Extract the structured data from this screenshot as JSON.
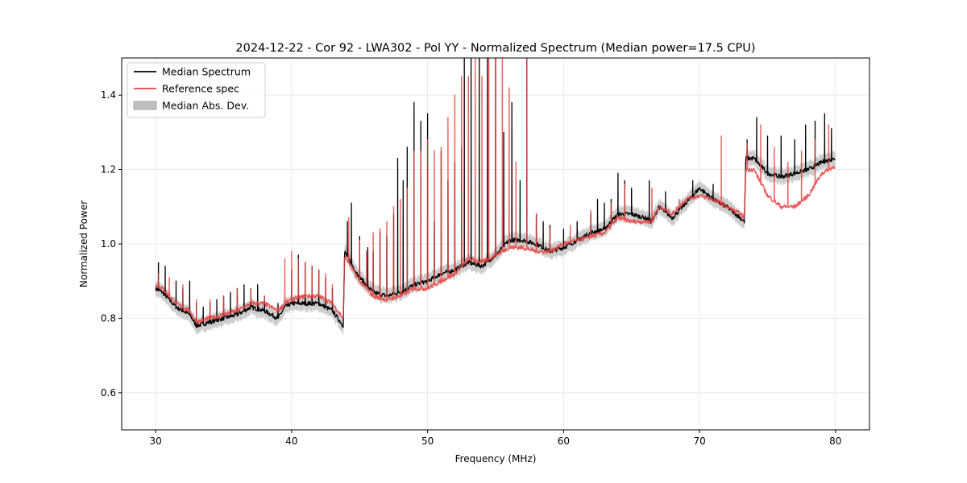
{
  "chart_data": {
    "type": "line",
    "title": "2024-12-22 - Cor 92 - LWA302 - Pol YY - Normalized Spectrum (Median power=17.5 CPU)",
    "xlabel": "Frequency (MHz)",
    "ylabel": "Normalized Power",
    "xlim": [
      27.5,
      82.5
    ],
    "ylim": [
      0.5,
      1.5
    ],
    "xticks": [
      30,
      40,
      50,
      60,
      70,
      80
    ],
    "yticks": [
      0.6,
      0.8,
      1.0,
      1.2,
      1.4
    ],
    "xtick_labels": [
      "30",
      "40",
      "50",
      "60",
      "70",
      "80"
    ],
    "ytick_labels": [
      "0.6",
      "0.8",
      "1.0",
      "1.2",
      "1.4"
    ],
    "grid": true,
    "legend_position": "top-left",
    "legend": [
      {
        "label": "Median Spectrum",
        "kind": "line",
        "color": "#000000"
      },
      {
        "label": "Reference spec",
        "kind": "line",
        "color": "#e8413f"
      },
      {
        "label": "Median Abs. Dev.",
        "kind": "band",
        "color": "#bfbfbf"
      }
    ],
    "series": [
      {
        "name": "Median Spectrum",
        "color": "#000000",
        "baseline": [
          [
            30.0,
            0.88
          ],
          [
            30.5,
            0.87
          ],
          [
            31.0,
            0.85
          ],
          [
            31.5,
            0.83
          ],
          [
            32.0,
            0.82
          ],
          [
            32.5,
            0.81
          ],
          [
            33.0,
            0.78
          ],
          [
            34.0,
            0.79
          ],
          [
            35.0,
            0.8
          ],
          [
            36.0,
            0.81
          ],
          [
            37.0,
            0.83
          ],
          [
            38.0,
            0.82
          ],
          [
            39.0,
            0.8
          ],
          [
            39.5,
            0.83
          ],
          [
            40.0,
            0.84
          ],
          [
            41.0,
            0.84
          ],
          [
            42.0,
            0.84
          ],
          [
            43.0,
            0.82
          ],
          [
            43.8,
            0.78
          ],
          [
            43.9,
            0.98
          ],
          [
            44.5,
            0.94
          ],
          [
            45.0,
            0.91
          ],
          [
            46.0,
            0.87
          ],
          [
            47.0,
            0.86
          ],
          [
            48.0,
            0.87
          ],
          [
            49.0,
            0.89
          ],
          [
            50.0,
            0.9
          ],
          [
            51.0,
            0.92
          ],
          [
            52.0,
            0.93
          ],
          [
            53.0,
            0.95
          ],
          [
            54.0,
            0.94
          ],
          [
            55.0,
            0.97
          ],
          [
            56.0,
            1.01
          ],
          [
            57.0,
            1.01
          ],
          [
            58.0,
            1.0
          ],
          [
            59.0,
            0.98
          ],
          [
            60.0,
            0.99
          ],
          [
            61.0,
            1.01
          ],
          [
            62.0,
            1.03
          ],
          [
            63.0,
            1.04
          ],
          [
            64.0,
            1.08
          ],
          [
            65.0,
            1.08
          ],
          [
            66.0,
            1.07
          ],
          [
            66.5,
            1.06
          ],
          [
            67.0,
            1.1
          ],
          [
            68.0,
            1.07
          ],
          [
            69.0,
            1.11
          ],
          [
            70.0,
            1.15
          ],
          [
            71.0,
            1.12
          ],
          [
            72.0,
            1.1
          ],
          [
            73.0,
            1.07
          ],
          [
            73.3,
            1.06
          ],
          [
            73.4,
            1.23
          ],
          [
            74.0,
            1.23
          ],
          [
            75.0,
            1.19
          ],
          [
            76.0,
            1.18
          ],
          [
            77.0,
            1.19
          ],
          [
            78.0,
            1.2
          ],
          [
            79.0,
            1.22
          ],
          [
            80.0,
            1.23
          ]
        ],
        "spikes": [
          [
            30.2,
            0.95
          ],
          [
            30.7,
            0.94
          ],
          [
            31.5,
            0.9
          ],
          [
            32.0,
            0.88
          ],
          [
            32.5,
            0.9
          ],
          [
            33.0,
            0.84
          ],
          [
            33.5,
            0.83
          ],
          [
            34.0,
            0.84
          ],
          [
            34.5,
            0.85
          ],
          [
            35.0,
            0.86
          ],
          [
            35.5,
            0.87
          ],
          [
            36.0,
            0.88
          ],
          [
            36.5,
            0.89
          ],
          [
            37.0,
            0.88
          ],
          [
            37.5,
            0.89
          ],
          [
            38.0,
            0.86
          ],
          [
            39.0,
            0.84
          ],
          [
            40.0,
            0.93
          ],
          [
            40.5,
            0.97
          ],
          [
            41.0,
            0.95
          ],
          [
            41.5,
            0.94
          ],
          [
            42.0,
            0.93
          ],
          [
            42.5,
            0.91
          ],
          [
            43.0,
            0.88
          ],
          [
            44.1,
            1.06
          ],
          [
            44.4,
            1.11
          ],
          [
            45.0,
            1.02
          ],
          [
            45.6,
            0.99
          ],
          [
            46.0,
            0.98
          ],
          [
            46.5,
            1.03
          ],
          [
            47.0,
            1.02
          ],
          [
            47.5,
            1.08
          ],
          [
            47.8,
            1.23
          ],
          [
            48.2,
            1.17
          ],
          [
            48.5,
            1.26
          ],
          [
            49.0,
            1.38
          ],
          [
            49.5,
            1.33
          ],
          [
            50.0,
            1.35
          ],
          [
            50.5,
            1.06
          ],
          [
            51.0,
            1.25
          ],
          [
            51.5,
            1.17
          ],
          [
            52.0,
            1.22
          ],
          [
            52.5,
            1.26
          ],
          [
            52.7,
            1.5
          ],
          [
            53.2,
            1.5
          ],
          [
            53.8,
            1.5
          ],
          [
            54.4,
            1.5
          ],
          [
            55.0,
            1.5
          ],
          [
            55.6,
            1.3
          ],
          [
            56.2,
            1.38
          ],
          [
            56.8,
            1.17
          ],
          [
            57.3,
            1.5
          ],
          [
            58.0,
            1.08
          ],
          [
            58.5,
            1.06
          ],
          [
            59.0,
            1.05
          ],
          [
            60.0,
            1.04
          ],
          [
            61.0,
            1.06
          ],
          [
            62.0,
            1.08
          ],
          [
            62.5,
            1.12
          ],
          [
            63.0,
            1.11
          ],
          [
            63.5,
            1.12
          ],
          [
            64.0,
            1.19
          ],
          [
            64.5,
            1.17
          ],
          [
            65.0,
            1.15
          ],
          [
            66.3,
            1.17
          ],
          [
            67.5,
            1.14
          ],
          [
            69.5,
            1.17
          ],
          [
            71.0,
            1.16
          ],
          [
            73.5,
            1.28
          ],
          [
            74.2,
            1.34
          ],
          [
            75.0,
            1.29
          ],
          [
            76.0,
            1.29
          ],
          [
            77.0,
            1.28
          ],
          [
            77.8,
            1.32
          ],
          [
            78.5,
            1.33
          ],
          [
            79.2,
            1.35
          ],
          [
            79.7,
            1.31
          ]
        ]
      },
      {
        "name": "Reference spec",
        "color": "#e8413f",
        "baseline": [
          [
            30.0,
            0.89
          ],
          [
            30.5,
            0.88
          ],
          [
            31.0,
            0.86
          ],
          [
            31.5,
            0.84
          ],
          [
            32.0,
            0.83
          ],
          [
            32.5,
            0.82
          ],
          [
            33.0,
            0.79
          ],
          [
            34.0,
            0.8
          ],
          [
            35.0,
            0.81
          ],
          [
            36.0,
            0.82
          ],
          [
            37.0,
            0.84
          ],
          [
            38.0,
            0.84
          ],
          [
            39.0,
            0.82
          ],
          [
            39.5,
            0.84
          ],
          [
            40.0,
            0.85
          ],
          [
            41.0,
            0.86
          ],
          [
            42.0,
            0.86
          ],
          [
            43.0,
            0.84
          ],
          [
            43.8,
            0.8
          ],
          [
            43.9,
            0.97
          ],
          [
            44.5,
            0.93
          ],
          [
            45.0,
            0.9
          ],
          [
            46.0,
            0.86
          ],
          [
            47.0,
            0.85
          ],
          [
            48.0,
            0.86
          ],
          [
            49.0,
            0.88
          ],
          [
            50.0,
            0.88
          ],
          [
            51.0,
            0.9
          ],
          [
            52.0,
            0.92
          ],
          [
            53.0,
            0.96
          ],
          [
            54.0,
            0.95
          ],
          [
            55.0,
            0.97
          ],
          [
            56.0,
            0.99
          ],
          [
            57.0,
            0.99
          ],
          [
            58.0,
            0.98
          ],
          [
            59.0,
            0.98
          ],
          [
            60.0,
            1.0
          ],
          [
            61.0,
            1.01
          ],
          [
            62.0,
            1.02
          ],
          [
            63.0,
            1.03
          ],
          [
            64.0,
            1.07
          ],
          [
            65.0,
            1.06
          ],
          [
            66.0,
            1.06
          ],
          [
            66.5,
            1.06
          ],
          [
            67.0,
            1.1
          ],
          [
            68.0,
            1.08
          ],
          [
            69.0,
            1.12
          ],
          [
            70.0,
            1.13
          ],
          [
            71.0,
            1.12
          ],
          [
            72.0,
            1.1
          ],
          [
            73.0,
            1.08
          ],
          [
            73.3,
            1.07
          ],
          [
            73.4,
            1.2
          ],
          [
            74.0,
            1.2
          ],
          [
            75.0,
            1.13
          ],
          [
            76.0,
            1.1
          ],
          [
            77.0,
            1.1
          ],
          [
            78.0,
            1.13
          ],
          [
            79.0,
            1.19
          ],
          [
            80.0,
            1.21
          ]
        ],
        "spikes": [
          [
            30.2,
            0.92
          ],
          [
            31.0,
            0.91
          ],
          [
            32.0,
            0.89
          ],
          [
            33.0,
            0.85
          ],
          [
            34.0,
            0.85
          ],
          [
            35.0,
            0.86
          ],
          [
            36.0,
            0.88
          ],
          [
            37.0,
            0.88
          ],
          [
            38.0,
            0.86
          ],
          [
            39.5,
            0.96
          ],
          [
            40.0,
            0.98
          ],
          [
            40.5,
            0.96
          ],
          [
            41.0,
            0.95
          ],
          [
            41.5,
            0.94
          ],
          [
            42.0,
            0.93
          ],
          [
            42.5,
            0.92
          ],
          [
            43.0,
            0.89
          ],
          [
            44.2,
            1.07
          ],
          [
            45.0,
            1.01
          ],
          [
            45.5,
            0.98
          ],
          [
            46.0,
            1.03
          ],
          [
            46.5,
            1.04
          ],
          [
            47.0,
            1.06
          ],
          [
            47.5,
            1.1
          ],
          [
            48.0,
            1.12
          ],
          [
            48.5,
            1.15
          ],
          [
            49.0,
            1.25
          ],
          [
            49.5,
            1.25
          ],
          [
            50.0,
            1.28
          ],
          [
            50.5,
            1.25
          ],
          [
            51.0,
            1.26
          ],
          [
            51.5,
            1.34
          ],
          [
            52.0,
            1.4
          ],
          [
            52.5,
            1.45
          ],
          [
            53.0,
            1.45
          ],
          [
            53.5,
            1.5
          ],
          [
            54.0,
            1.45
          ],
          [
            54.5,
            1.5
          ],
          [
            55.0,
            1.5
          ],
          [
            55.5,
            1.5
          ],
          [
            56.0,
            1.42
          ],
          [
            56.5,
            1.22
          ],
          [
            57.3,
            1.5
          ],
          [
            58.0,
            1.08
          ],
          [
            59.0,
            1.04
          ],
          [
            60.5,
            1.05
          ],
          [
            62.0,
            1.09
          ],
          [
            63.5,
            1.11
          ],
          [
            64.5,
            1.16
          ],
          [
            66.5,
            1.15
          ],
          [
            68.5,
            1.12
          ],
          [
            71.6,
            1.29
          ],
          [
            73.5,
            1.27
          ],
          [
            74.5,
            1.32
          ],
          [
            75.5,
            1.26
          ],
          [
            76.5,
            1.22
          ],
          [
            77.5,
            1.25
          ],
          [
            78.5,
            1.28
          ],
          [
            79.5,
            1.32
          ]
        ]
      }
    ],
    "band": {
      "name": "Median Abs. Dev.",
      "color": "#bfbfbf",
      "width": 0.02
    }
  }
}
